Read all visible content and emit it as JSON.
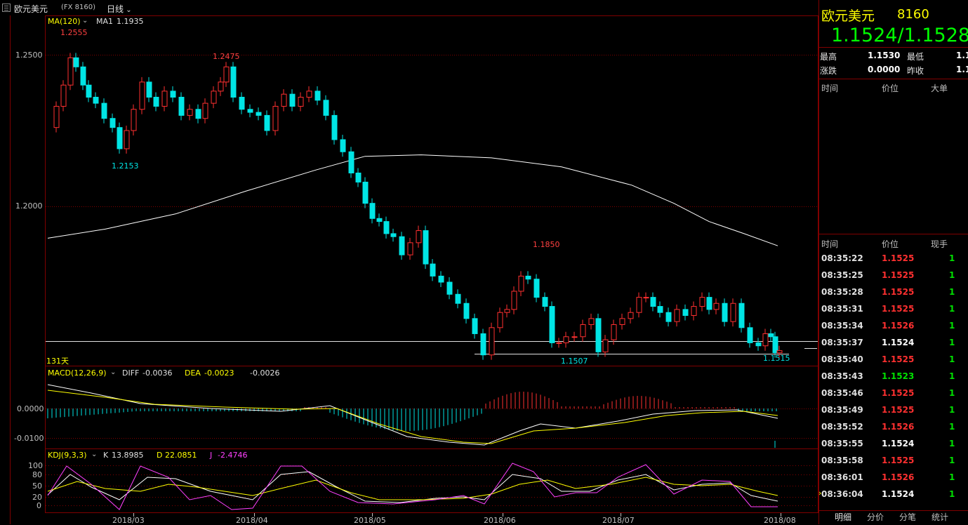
{
  "window": {
    "name": "欧元美元",
    "code": "(FX 8160)",
    "period": "日线",
    "period_arrow": "chevron-down-icon"
  },
  "main_chart": {
    "indicator": "MA(120)",
    "ma1_label": "MA1",
    "ma1_value": "1.1935",
    "day_count": "131天",
    "y_ticks": [
      "1.2500",
      "1.2000"
    ],
    "annotations": {
      "high1": "1.2555",
      "low1": "1.2153",
      "high2": "1.2475",
      "high3": "1.1850",
      "low2": "1.1507",
      "last_low": "1.1515"
    }
  },
  "macd": {
    "title": "MACD(12,26,9)",
    "diff_label": "DIFF",
    "diff_value": "-0.0036",
    "dea_label": "DEA",
    "dea_value": "-0.0023",
    "macd_value": "-0.0026",
    "y_ticks": [
      "0.0000",
      "-0.0100"
    ]
  },
  "kdj": {
    "title": "KDJ(9,3,3)",
    "k_label": "K",
    "k_value": "13.8985",
    "d_label": "D",
    "d_value": "22.0851",
    "j_label": "J",
    "j_value": "-2.4746",
    "y_ticks": [
      "100",
      "80",
      "50",
      "20",
      "0"
    ]
  },
  "x_axis": [
    "2018/03",
    "2018/04",
    "2018/05",
    "2018/06",
    "2018/07",
    "2018/08"
  ],
  "quote_panel": {
    "name": "欧元美元",
    "code": "8160",
    "price": "1.1524/1.1528",
    "high_label": "最高",
    "high_value": "1.1530",
    "low_label": "最低",
    "low_value": "1.1",
    "change_label": "涨跌",
    "change_value": "0.0000",
    "prev_label": "昨收",
    "prev_value": "1.1",
    "big_header": [
      "时间",
      "价位",
      "大单"
    ],
    "ticks_header": [
      "时间",
      "价位",
      "现手"
    ],
    "ticks": [
      {
        "time": "08:35:22",
        "price": "1.1525",
        "vol": "1",
        "color": "#ff3030"
      },
      {
        "time": "08:35:25",
        "price": "1.1525",
        "vol": "1",
        "color": "#ff3030"
      },
      {
        "time": "08:35:28",
        "price": "1.1525",
        "vol": "1",
        "color": "#ff3030"
      },
      {
        "time": "08:35:31",
        "price": "1.1525",
        "vol": "1",
        "color": "#ff3030"
      },
      {
        "time": "08:35:34",
        "price": "1.1526",
        "vol": "1",
        "color": "#ff3030"
      },
      {
        "time": "08:35:37",
        "price": "1.1524",
        "vol": "1",
        "color": "#ffffff"
      },
      {
        "time": "08:35:40",
        "price": "1.1525",
        "vol": "1",
        "color": "#ff3030"
      },
      {
        "time": "08:35:43",
        "price": "1.1523",
        "vol": "1",
        "color": "#00e000"
      },
      {
        "time": "08:35:46",
        "price": "1.1525",
        "vol": "1",
        "color": "#ff3030"
      },
      {
        "time": "08:35:49",
        "price": "1.1525",
        "vol": "1",
        "color": "#ff3030"
      },
      {
        "time": "08:35:52",
        "price": "1.1526",
        "vol": "1",
        "color": "#ff3030"
      },
      {
        "time": "08:35:55",
        "price": "1.1524",
        "vol": "1",
        "color": "#ffffff"
      },
      {
        "time": "08:35:58",
        "price": "1.1525",
        "vol": "1",
        "color": "#ff3030"
      },
      {
        "time": "08:36:01",
        "price": "1.1526",
        "vol": "1",
        "color": "#ff3030"
      },
      {
        "time": "08:36:04",
        "price": "1.1524",
        "vol": "1",
        "color": "#ffffff"
      }
    ],
    "tabs": [
      "明细",
      "分价",
      "分笔",
      "统计"
    ]
  },
  "colors": {
    "up": "#ff3030",
    "down": "#00e5e5",
    "grid": "#800000",
    "ma": "#ffffff",
    "price": "#00ff00",
    "title": "#ffff00"
  }
}
